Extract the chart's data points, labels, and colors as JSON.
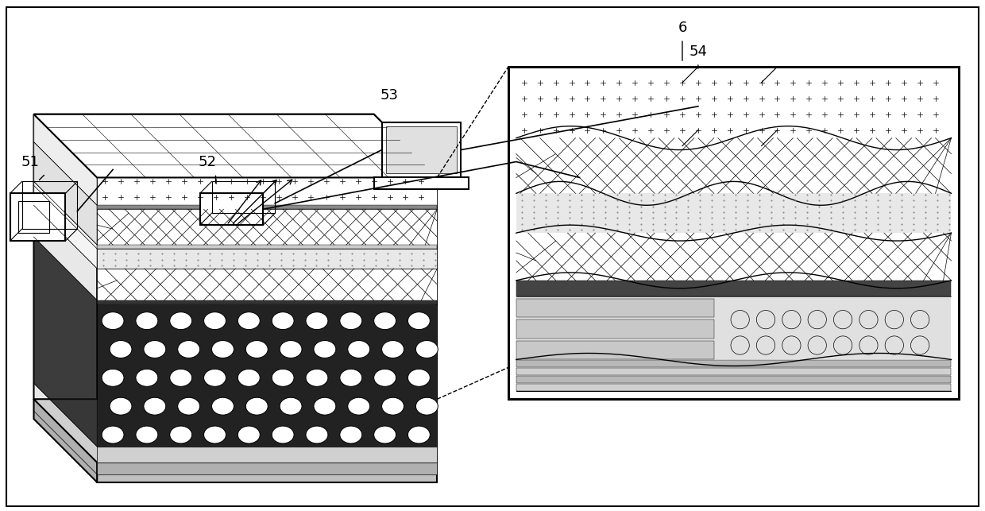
{
  "title": "",
  "bg_color": "#ffffff",
  "line_color": "#000000",
  "label_51": "51",
  "label_52": "52",
  "label_53": "53",
  "label_54": "54",
  "label_6": "6",
  "label_fontsize": 13,
  "fig_width": 12.4,
  "fig_height": 6.43,
  "dpi": 100
}
